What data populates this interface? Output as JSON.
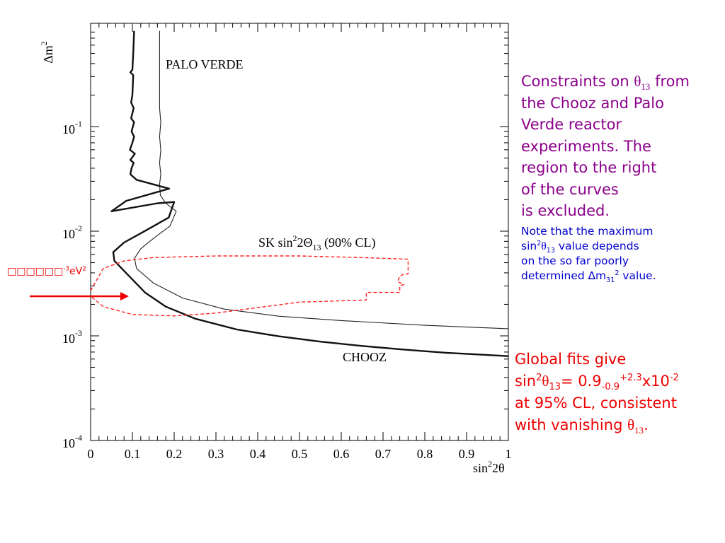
{
  "chart_data": {
    "type": "line",
    "xlabel": "sin²2θ",
    "ylabel": "Δm²",
    "x_scale": "linear",
    "y_scale": "log",
    "xlim": [
      0,
      1
    ],
    "ylim": [
      0.0001,
      1
    ],
    "x_ticks": [
      "0",
      "0.1",
      "0.2",
      "0.3",
      "0.4",
      "0.5",
      "0.6",
      "0.7",
      "0.8",
      "0.9",
      "1"
    ],
    "y_ticks": [
      {
        "base": "10",
        "exp": "-1"
      },
      {
        "base": "10",
        "exp": "-2"
      },
      {
        "base": "10",
        "exp": "-3"
      },
      {
        "base": "10",
        "exp": "-4"
      }
    ],
    "series": [
      {
        "name": "CHOOZ",
        "color": "#111111",
        "style": "thick",
        "points": [
          [
            0.104,
            0.82
          ],
          [
            0.102,
            0.5
          ],
          [
            0.1,
            0.35
          ],
          [
            0.095,
            0.33
          ],
          [
            0.102,
            0.31
          ],
          [
            0.1,
            0.2
          ],
          [
            0.097,
            0.17
          ],
          [
            0.103,
            0.15
          ],
          [
            0.097,
            0.12
          ],
          [
            0.104,
            0.11
          ],
          [
            0.098,
            0.09
          ],
          [
            0.104,
            0.08
          ],
          [
            0.1,
            0.07
          ],
          [
            0.094,
            0.06
          ],
          [
            0.106,
            0.055
          ],
          [
            0.095,
            0.048
          ],
          [
            0.103,
            0.045
          ],
          [
            0.098,
            0.04
          ],
          [
            0.095,
            0.035
          ],
          [
            0.11,
            0.031
          ],
          [
            0.188,
            0.0255
          ],
          [
            0.085,
            0.0195
          ],
          [
            0.05,
            0.0155
          ],
          [
            0.16,
            0.0185
          ],
          [
            0.2,
            0.019
          ],
          [
            0.187,
            0.0135
          ],
          [
            0.125,
            0.0098
          ],
          [
            0.08,
            0.0078
          ],
          [
            0.054,
            0.0063
          ],
          [
            0.057,
            0.0052
          ],
          [
            0.09,
            0.0038
          ],
          [
            0.13,
            0.0026
          ],
          [
            0.18,
            0.0019
          ],
          [
            0.25,
            0.00146
          ],
          [
            0.35,
            0.00115
          ],
          [
            0.45,
            0.00099
          ],
          [
            0.55,
            0.00088
          ],
          [
            0.65,
            0.0008
          ],
          [
            0.75,
            0.00074
          ],
          [
            0.85,
            0.00069
          ],
          [
            1.0,
            0.00064
          ]
        ]
      },
      {
        "name": "PALO VERDE",
        "color": "#222222",
        "style": "thin",
        "points": [
          [
            0.165,
            0.82
          ],
          [
            0.165,
            0.4
          ],
          [
            0.165,
            0.15
          ],
          [
            0.168,
            0.11
          ],
          [
            0.165,
            0.08
          ],
          [
            0.168,
            0.06
          ],
          [
            0.165,
            0.045
          ],
          [
            0.168,
            0.035
          ],
          [
            0.165,
            0.028
          ],
          [
            0.167,
            0.022
          ],
          [
            0.18,
            0.0185
          ],
          [
            0.205,
            0.0155
          ],
          [
            0.19,
            0.0112
          ],
          [
            0.15,
            0.0085
          ],
          [
            0.12,
            0.0068
          ],
          [
            0.105,
            0.0055
          ],
          [
            0.11,
            0.0044
          ],
          [
            0.15,
            0.0032
          ],
          [
            0.22,
            0.0023
          ],
          [
            0.32,
            0.0018
          ],
          [
            0.45,
            0.00154
          ],
          [
            0.6,
            0.0014
          ],
          [
            0.8,
            0.00126
          ],
          [
            1.0,
            0.00117
          ]
        ]
      },
      {
        "name": "SK sin²2Θ₁₃ (90% CL)",
        "color": "#ff2020",
        "style": "dashed",
        "points": [
          [
            0.0,
            0.0027
          ],
          [
            0.03,
            0.0044
          ],
          [
            0.08,
            0.0052
          ],
          [
            0.15,
            0.0056
          ],
          [
            0.3,
            0.0058
          ],
          [
            0.5,
            0.0058
          ],
          [
            0.65,
            0.0056
          ],
          [
            0.76,
            0.0054
          ],
          [
            0.76,
            0.0039
          ],
          [
            0.75,
            0.0039
          ],
          [
            0.74,
            0.0037
          ],
          [
            0.735,
            0.0033
          ],
          [
            0.75,
            0.0031
          ],
          [
            0.74,
            0.003
          ],
          [
            0.74,
            0.0026
          ],
          [
            0.66,
            0.0026
          ],
          [
            0.66,
            0.0022
          ],
          [
            0.5,
            0.0021
          ],
          [
            0.3,
            0.00165
          ],
          [
            0.2,
            0.00155
          ],
          [
            0.1,
            0.0016
          ],
          [
            0.03,
            0.0019
          ],
          [
            0.0,
            0.0024
          ]
        ]
      }
    ],
    "annotations": [
      {
        "text": "PALO VERDE",
        "x": 0.18,
        "y": 0.42
      },
      {
        "text": "CHOOZ",
        "x": 0.6,
        "y": 0.00072
      }
    ],
    "sk_label": {
      "prefix": "SK sin",
      "sup": "2",
      "mid": "2Θ",
      "sub": "13",
      "suffix": " (90% CL)"
    },
    "grid": false,
    "legend": "none"
  },
  "arrow_marker": {
    "text_main": "□□□□□□",
    "text_sup": "-3",
    "text_unit": "eV",
    "text_unit_sup": "2",
    "color": "#ee0000"
  },
  "notes": {
    "main": {
      "line1_a": "Constraints on ",
      "theta": "θ",
      "theta_sub": "13",
      "line1_b": " from",
      "rest": [
        "the Chooz and Palo",
        "Verde reactor",
        "experiments. The",
        "region to the right",
        "of the curves",
        "is excluded."
      ]
    },
    "secondary": {
      "line1": "Note that the maximum",
      "l2_a": "sin",
      "l2_sup": "2",
      "l2_theta": "θ",
      "l2_sub": "13",
      "l2_b": " value depends",
      "line3": "on the so far poorly",
      "l4_a": "determined ",
      "l4_delta": "∆m",
      "l4_sub": "31",
      "l4_sup": "2",
      "l4_b": " value."
    },
    "global": {
      "line1": "Global fits give",
      "l2_a": "sin",
      "l2_sup": "2",
      "l2_theta": "θ",
      "l2_sub": "13",
      "l2_b": "= 0.9",
      "l2_sub2": "-0.9",
      "l2_sup2": "+2.3",
      "l2_c": "x10",
      "l2_sup3": "-2",
      "line3": "at 95% CL, consistent",
      "l4_a": "with vanishing ",
      "l4_theta": "θ",
      "l4_sub": "13",
      "l4_b": "."
    }
  }
}
